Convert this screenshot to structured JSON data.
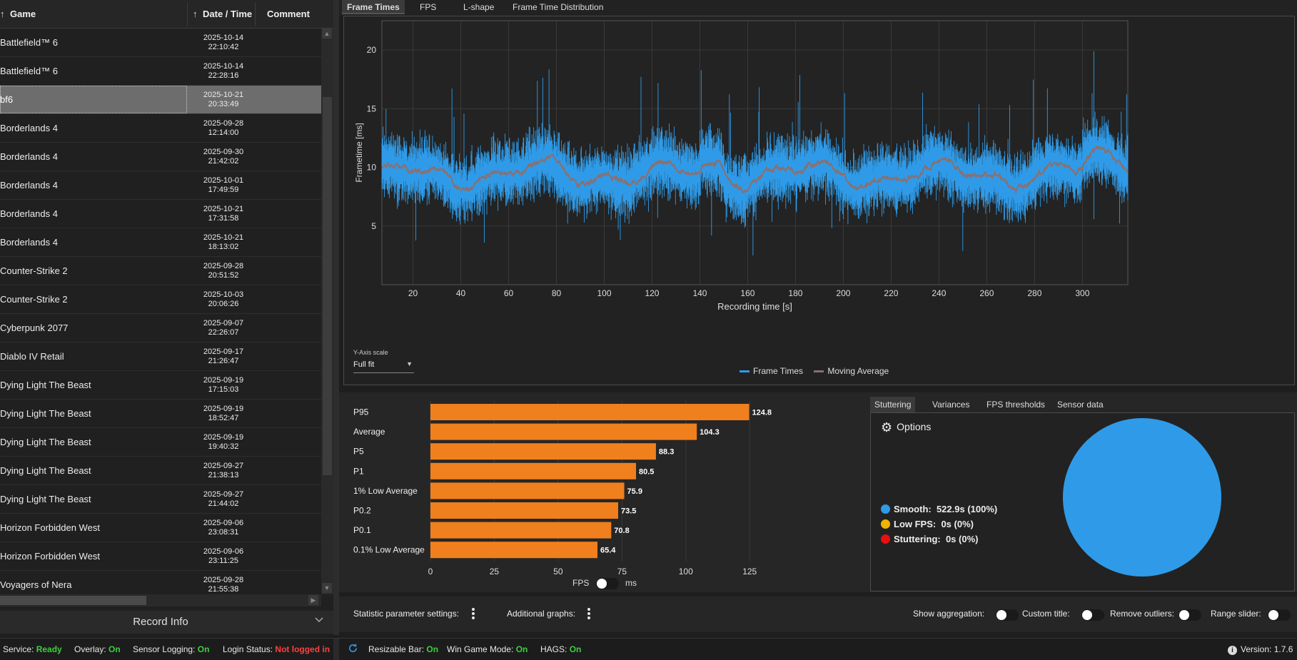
{
  "table": {
    "columns": {
      "game": "Game",
      "datetime": "Date / Time",
      "comment": "Comment"
    },
    "rows": [
      {
        "game": "Battlefield™ 6",
        "date": "2025-10-14",
        "time": "22:10:42"
      },
      {
        "game": "Battlefield™ 6",
        "date": "2025-10-14",
        "time": "22:28:16"
      },
      {
        "game": "bf6",
        "date": "2025-10-21",
        "time": "20:33:49",
        "selected": true
      },
      {
        "game": "Borderlands 4",
        "date": "2025-09-28",
        "time": "12:14:00"
      },
      {
        "game": "Borderlands 4",
        "date": "2025-09-30",
        "time": "21:42:02"
      },
      {
        "game": "Borderlands 4",
        "date": "2025-10-01",
        "time": "17:49:59"
      },
      {
        "game": "Borderlands 4",
        "date": "2025-10-21",
        "time": "17:31:58"
      },
      {
        "game": "Borderlands 4",
        "date": "2025-10-21",
        "time": "18:13:02"
      },
      {
        "game": "Counter-Strike 2",
        "date": "2025-09-28",
        "time": "20:51:52"
      },
      {
        "game": "Counter-Strike 2",
        "date": "2025-10-03",
        "time": "20:06:26"
      },
      {
        "game": "Cyberpunk 2077",
        "date": "2025-09-07",
        "time": "22:26:07"
      },
      {
        "game": "Diablo IV Retail",
        "date": "2025-09-17",
        "time": "21:26:47"
      },
      {
        "game": "Dying Light The Beast",
        "date": "2025-09-19",
        "time": "17:15:03"
      },
      {
        "game": "Dying Light The Beast",
        "date": "2025-09-19",
        "time": "18:52:47"
      },
      {
        "game": "Dying Light The Beast",
        "date": "2025-09-19",
        "time": "19:40:32"
      },
      {
        "game": "Dying Light The Beast",
        "date": "2025-09-27",
        "time": "21:38:13"
      },
      {
        "game": "Dying Light The Beast",
        "date": "2025-09-27",
        "time": "21:44:02"
      },
      {
        "game": "Horizon Forbidden West",
        "date": "2025-09-06",
        "time": "23:08:31"
      },
      {
        "game": "Horizon Forbidden West",
        "date": "2025-09-06",
        "time": "23:11:25"
      },
      {
        "game": "Voyagers of Nera",
        "date": "2025-09-28",
        "time": "21:55:38"
      }
    ]
  },
  "record_info": {
    "title": "Record Info",
    "chevron": "chevron-down-icon"
  },
  "top_tabs": [
    "Frame Times",
    "FPS",
    "L-shape",
    "Frame Time Distribution"
  ],
  "frametime_chart": {
    "type": "line",
    "xlabel": "Recording time [s]",
    "ylabel": "Frametime [ms]",
    "x_ticks": [
      20,
      40,
      60,
      80,
      100,
      120,
      140,
      160,
      180,
      200,
      220,
      240,
      260,
      280,
      300
    ],
    "y_ticks": [
      5,
      10,
      15,
      20
    ],
    "xlim": [
      7,
      319
    ],
    "ylim": [
      0,
      22.5
    ],
    "series": [
      {
        "name": "Frame Times",
        "color": "#2f9be8"
      },
      {
        "name": "Moving Average",
        "color": "#8a7070"
      }
    ],
    "y_axis_scale_label": "Y-Axis scale",
    "y_axis_scale_value": "Full fit"
  },
  "chart_data": {
    "type": "bar",
    "orientation": "horizontal",
    "categories": [
      "P95",
      "Average",
      "P5",
      "P1",
      "1% Low Average",
      "P0.2",
      "P0.1",
      "0.1% Low Average"
    ],
    "values": [
      124.8,
      104.3,
      88.3,
      80.5,
      75.9,
      73.5,
      70.8,
      65.4
    ],
    "value_labels": [
      "124.8",
      "104.3",
      "88.3",
      "80.5",
      "75.9",
      "73.5",
      "70.8",
      "65.4"
    ],
    "x_ticks": [
      0,
      25,
      50,
      75,
      100,
      125
    ],
    "xlim": [
      0,
      135
    ],
    "color": "#f07f1d",
    "unit_toggle": {
      "left": "FPS",
      "right": "ms"
    }
  },
  "stuttering": {
    "tabs": [
      "Stuttering",
      "Variances",
      "FPS thresholds",
      "Sensor data"
    ],
    "options_label": "Options",
    "items": [
      {
        "label": "Smooth:",
        "value": "522.9s (100%)",
        "color": "#2f9be8"
      },
      {
        "label": "Low FPS:",
        "value": "0s (0%)",
        "color": "#f0b400"
      },
      {
        "label": "Stuttering:",
        "value": "0s (0%)",
        "color": "#e81010"
      }
    ],
    "pie_fractions": [
      1.0,
      0.0,
      0.0
    ]
  },
  "settings": {
    "statistic_label": "Statistic parameter settings:",
    "additional_label": "Additional graphs:",
    "toggles": [
      "Show aggregation:",
      "Custom title:",
      "Remove outliers:",
      "Range slider:"
    ]
  },
  "status": {
    "service_label": "Service:",
    "service_value": "Ready",
    "overlay_label": "Overlay:",
    "overlay_value": "On",
    "sensor_label": "Sensor Logging:",
    "sensor_value": "On",
    "login_label": "Login Status:",
    "login_value": "Not logged in",
    "rebar_label": "Resizable Bar:",
    "rebar_value": "On",
    "gamemode_label": "Win Game Mode:",
    "gamemode_value": "On",
    "hags_label": "HAGS:",
    "hags_value": "On",
    "version_label": "Version: 1.7.6"
  }
}
